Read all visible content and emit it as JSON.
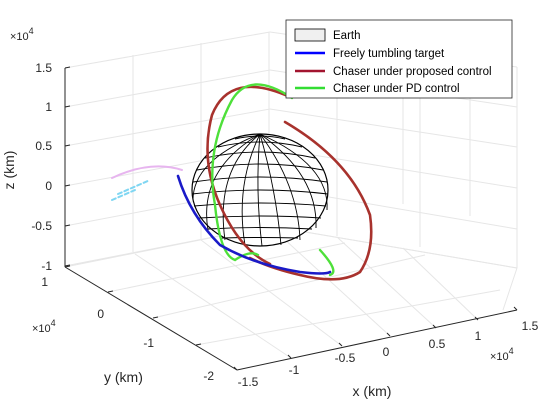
{
  "chart_data": {
    "type": "line",
    "projection": "3d",
    "xlabel": "x (km)",
    "ylabel": "y (km)",
    "zlabel": "z (km)",
    "x_exponent": "×10^4",
    "y_exponent": "×10^4",
    "z_exponent": "×10^4",
    "xlim": [
      -1.5,
      1.5
    ],
    "ylim": [
      -2,
      1
    ],
    "zlim": [
      -1,
      1.5
    ],
    "x_ticks": [
      "-1.5",
      "-1",
      "-0.5",
      "0",
      "0.5",
      "1",
      "1.5"
    ],
    "y_ticks": [
      "-2",
      "-1",
      "0",
      "1"
    ],
    "z_ticks": [
      "-1",
      "-0.5",
      "0",
      "0.5",
      "1",
      "1.5"
    ],
    "grid": true,
    "legend_position": "top-right",
    "legend": [
      {
        "label": "Earth",
        "kind": "patch",
        "color": "#f0f0f0"
      },
      {
        "label": "Freely tumbling target",
        "kind": "line",
        "color": "#0000ff"
      },
      {
        "label": "Chaser under proposed control",
        "kind": "line",
        "color": "#a2142f"
      },
      {
        "label": "Chaser under PD control",
        "kind": "line",
        "color": "#33dd33"
      }
    ],
    "colors": {
      "target": "#1a1ac8",
      "proposed": "#a8322d",
      "pd": "#4ee03a",
      "earth_fill": "#ffffff",
      "earth_grid": "#000000"
    }
  }
}
